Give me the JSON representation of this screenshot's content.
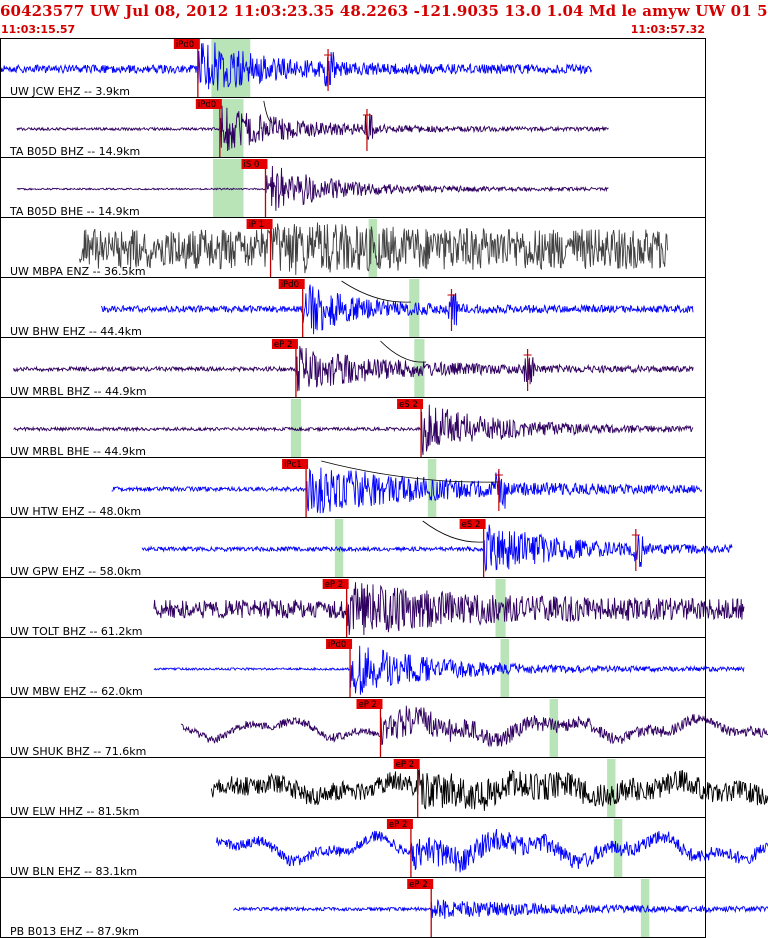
{
  "header": {
    "title": "60423577 UW Jul 08, 2012 11:03:23.35    48.2263 -121.9035 13.0 1.04 Md le amyw UW 01    5",
    "time_start": "11:03:15.57",
    "time_end": "11:03:57.32"
  },
  "colors": {
    "header_text": "#d40000",
    "pick_box": "#e40000",
    "pick_line": "#c00000",
    "green_window": "#b8e4b8",
    "trace_blue": "#0000ff",
    "trace_purple": "#300060",
    "trace_gray": "#404040",
    "trace_black": "#000000",
    "grid_line": "#000000"
  },
  "traces": [
    {
      "label": "UW JCW EHZ -- 3.9km",
      "pick_label": "iPd0",
      "pick_t": 11.7,
      "green": [
        12.5,
        14.8
      ],
      "start_t": 0.0,
      "end_t": 35.0,
      "color": "blue",
      "noise": 0.15,
      "amp": 1.0,
      "coda": 6,
      "s_t": 19.4,
      "bands": [
        [
          13.6,
          14.3
        ],
        [
          19.2,
          19.4
        ]
      ]
    },
    {
      "label": "TA B05D BHZ -- 14.9km",
      "pick_label": "iPd0",
      "pick_t": 13.0,
      "green": [
        12.6,
        14.4
      ],
      "start_t": 1.0,
      "end_t": 36.0,
      "color": "purple",
      "noise": 0.05,
      "amp": 0.75,
      "coda": 8,
      "s_t": 21.7,
      "bands": [],
      "curve": [
        15.6,
        16.1
      ]
    },
    {
      "label": "TA B05D BHE -- 14.9km",
      "pick_label": "iS 0",
      "pick_t": 15.7,
      "green": [
        12.6,
        14.4
      ],
      "start_t": 1.0,
      "end_t": 36.0,
      "color": "purple",
      "noise": 0.03,
      "amp": 0.85,
      "coda": 7,
      "bands": []
    },
    {
      "label": "UW MBPA ENZ -- 36.5km",
      "pick_label": "iP 1",
      "pick_t": 16.0,
      "green": [
        21.8,
        22.3
      ],
      "start_t": 4.7,
      "end_t": 39.5,
      "color": "gray",
      "noise": 0.75,
      "amp": 0.95,
      "coda": 4,
      "bands": []
    },
    {
      "label": "UW BHW EHZ -- 44.4km",
      "pick_label": "iPd0",
      "pick_t": 17.9,
      "green": [
        24.2,
        24.8
      ],
      "start_t": 6.0,
      "end_t": 41.0,
      "color": "blue",
      "noise": 0.12,
      "amp": 0.9,
      "coda": 5,
      "s_t": 26.7,
      "bands": [],
      "curve": [
        20.2,
        24.3
      ]
    },
    {
      "label": "UW MRBL BHZ -- 44.9km",
      "pick_label": "eP 2",
      "pick_t": 17.5,
      "green": [
        24.5,
        25.1
      ],
      "start_t": 0.8,
      "end_t": 41.0,
      "color": "purple",
      "noise": 0.08,
      "amp": 0.7,
      "coda": 10,
      "s_t": 31.2,
      "bands": [],
      "curve": [
        22.5,
        25.2
      ]
    },
    {
      "label": "UW MRBL BHE -- 44.9km",
      "pick_label": "eS 2",
      "pick_t": 24.9,
      "green": [
        17.2,
        17.8
      ],
      "start_t": 0.8,
      "end_t": 41.0,
      "color": "purple",
      "noise": 0.06,
      "amp": 0.85,
      "coda": 8,
      "bands": []
    },
    {
      "label": "UW HTW EHZ -- 48.0km",
      "pick_label": "iPc1",
      "pick_t": 18.1,
      "green": [
        25.3,
        25.8
      ],
      "start_t": 6.6,
      "end_t": 41.5,
      "color": "blue",
      "noise": 0.08,
      "amp": 0.8,
      "coda": 14,
      "s_t": 29.5,
      "bands": [],
      "curve": [
        19.0,
        29.5
      ]
    },
    {
      "label": "UW GPW EHZ -- 58.0km",
      "pick_label": "eS 2",
      "pick_t": 28.6,
      "green": [
        19.8,
        20.3
      ],
      "start_t": 8.4,
      "end_t": 43.3,
      "color": "blue",
      "noise": 0.08,
      "amp": 0.85,
      "coda": 8,
      "s_t": 37.6,
      "bands": [],
      "curve": [
        25.0,
        28.6
      ]
    },
    {
      "label": "UW TOLT BHZ -- 61.2km",
      "pick_label": "eP 2",
      "pick_t": 20.5,
      "green": [
        29.3,
        29.9
      ],
      "start_t": 9.1,
      "end_t": 44.0,
      "color": "purple",
      "noise": 0.35,
      "amp": 0.65,
      "coda": 12,
      "bands": []
    },
    {
      "label": "UW MBW EHZ -- 62.0km",
      "pick_label": "iPd0",
      "pick_t": 20.7,
      "green": [
        29.6,
        30.1
      ],
      "start_t": 9.1,
      "end_t": 44.0,
      "color": "blue",
      "noise": 0.04,
      "amp": 0.9,
      "coda": 9,
      "bands": []
    },
    {
      "label": "UW SHUK BHZ -- 71.6km",
      "pick_label": "eP 2",
      "pick_t": 22.5,
      "green": [
        32.5,
        33.0
      ],
      "start_t": 10.7,
      "end_t": 45.7,
      "color": "purple",
      "noise": 0.15,
      "amp": 0.45,
      "coda": 12,
      "bands": [],
      "lowfreq": 0.28
    },
    {
      "label": "UW ELW HHZ -- 81.5km",
      "pick_label": "eP 2",
      "pick_t": 24.7,
      "green": [
        35.9,
        36.4
      ],
      "start_t": 12.5,
      "end_t": 47.3,
      "color": "black",
      "noise": 0.35,
      "amp": 0.35,
      "coda": 14,
      "bands": [],
      "lowfreq": 0.22
    },
    {
      "label": "UW BLN EHZ -- 83.1km",
      "pick_label": "eP 2",
      "pick_t": 24.3,
      "green": [
        36.3,
        36.8
      ],
      "start_t": 12.8,
      "end_t": 47.6,
      "color": "blue",
      "noise": 0.2,
      "amp": 0.35,
      "coda": 14,
      "bands": [],
      "lowfreq": 0.35
    },
    {
      "label": "PB B013 EHZ -- 87.9km",
      "pick_label": "eP 2",
      "pick_t": 25.5,
      "green": [
        37.9,
        38.4
      ],
      "start_t": 13.8,
      "end_t": 48.0,
      "color": "blue",
      "noise": 0.06,
      "amp": 0.3,
      "coda": 14,
      "bands": []
    }
  ]
}
